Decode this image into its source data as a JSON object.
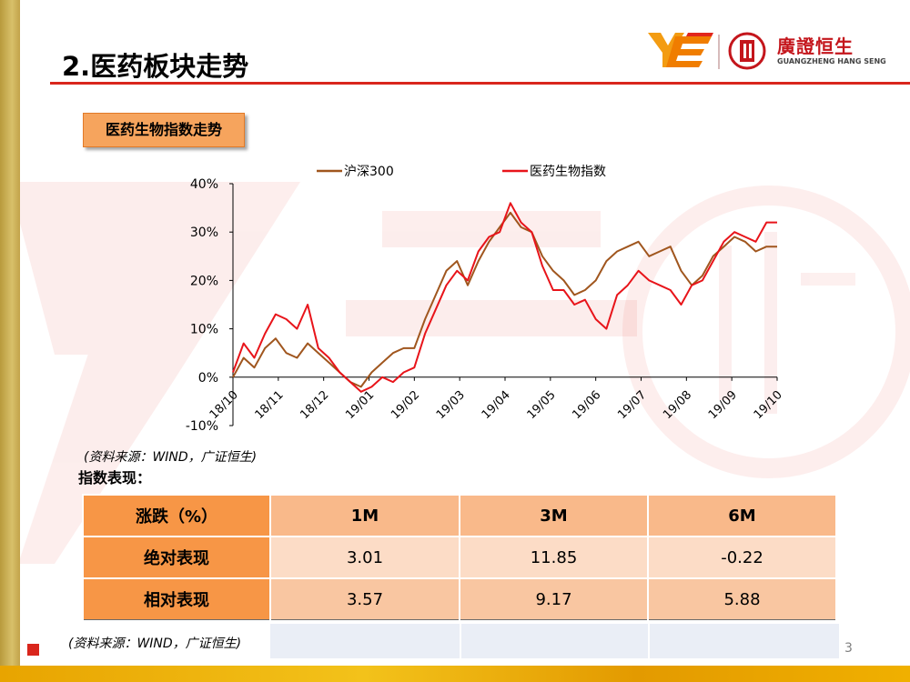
{
  "page_title": "2.医药板块走势",
  "logo": {
    "name_cn": "廣證恒生",
    "name_en": "GUANGZHENG HANG SENG"
  },
  "section_tag": "医药生物指数走势",
  "chart_data": {
    "type": "line",
    "legend_position": "top",
    "ylim": [
      -10,
      40
    ],
    "y_ticks": [
      "-10%",
      "0%",
      "10%",
      "20%",
      "30%",
      "40%"
    ],
    "x_ticks": [
      "18/10",
      "18/11",
      "18/12",
      "19/01",
      "19/02",
      "19/03",
      "19/04",
      "19/05",
      "19/06",
      "19/07",
      "19/08",
      "19/09",
      "19/10"
    ],
    "x": [
      "18/10",
      "18/10",
      "18/10",
      "18/10",
      "18/11",
      "18/11",
      "18/11",
      "18/11",
      "18/12",
      "18/12",
      "18/12",
      "18/12",
      "19/01",
      "19/01",
      "19/01",
      "19/01",
      "19/01",
      "19/02",
      "19/02",
      "19/02",
      "19/02",
      "19/03",
      "19/03",
      "19/03",
      "19/03",
      "19/04",
      "19/04",
      "19/04",
      "19/04",
      "19/04",
      "19/05",
      "19/05",
      "19/05",
      "19/05",
      "19/06",
      "19/06",
      "19/06",
      "19/06",
      "19/07",
      "19/07",
      "19/07",
      "19/07",
      "19/08",
      "19/08",
      "19/08",
      "19/08",
      "19/08",
      "19/09",
      "19/09",
      "19/09",
      "19/09",
      "19/10"
    ],
    "series": [
      {
        "name": "沪深300",
        "color": "#a0561e",
        "values": [
          0,
          4,
          2,
          6,
          8,
          5,
          4,
          7,
          5,
          3,
          1,
          -1,
          -2,
          1,
          3,
          5,
          6,
          6,
          12,
          17,
          22,
          24,
          19,
          24,
          28,
          31,
          34,
          31,
          30,
          25,
          22,
          20,
          17,
          18,
          20,
          24,
          26,
          27,
          28,
          25,
          26,
          27,
          22,
          19,
          21,
          25,
          27,
          29,
          28,
          26,
          27,
          27
        ]
      },
      {
        "name": "医药生物指数",
        "color": "#e8141a",
        "values": [
          1,
          7,
          4,
          9,
          13,
          12,
          10,
          15,
          6,
          4,
          1,
          -1,
          -3,
          -2,
          0,
          -1,
          1,
          2,
          9,
          14,
          19,
          22,
          20,
          26,
          29,
          30,
          36,
          32,
          30,
          23,
          18,
          18,
          15,
          16,
          12,
          10,
          17,
          19,
          22,
          20,
          19,
          18,
          15,
          19,
          20,
          24,
          28,
          30,
          29,
          28,
          32,
          32
        ]
      }
    ]
  },
  "source_note_1": "(资料来源：WIND，广证恒生)",
  "performance_title": "指数表现：",
  "performance_table": {
    "corner": "涨跌（%）",
    "columns": [
      "1M",
      "3M",
      "6M"
    ],
    "rows": [
      {
        "label": "绝对表现",
        "values": [
          "3.01",
          "11.85",
          "-0.22"
        ]
      },
      {
        "label": "相对表现",
        "values": [
          "3.57",
          "9.17",
          "5.88"
        ]
      }
    ]
  },
  "source_note_2": "(资料来源：WIND，广证恒生)",
  "page_number": "3"
}
